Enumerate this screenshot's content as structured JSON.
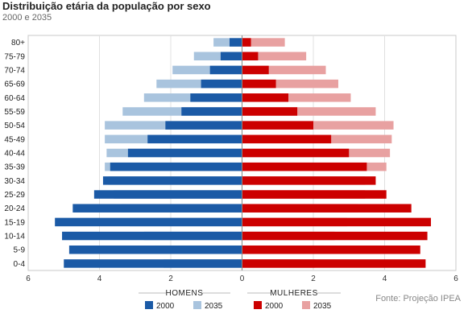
{
  "chart_data": {
    "type": "bar",
    "orientation": "horizontal-pyramid",
    "title": "Distribuição etária da população por sexo",
    "subtitle": "2000 e 2035",
    "categories": [
      "80+",
      "75-79",
      "70-74",
      "65-69",
      "60-64",
      "55-59",
      "50-54",
      "45-49",
      "40-44",
      "35-39",
      "30-34",
      "25-29",
      "20-24",
      "15-19",
      "10-14",
      "5-9",
      "0-4"
    ],
    "xlim": [
      -6,
      6
    ],
    "xticks": [
      -6,
      -4,
      -2,
      0,
      2,
      4,
      6
    ],
    "xtick_labels": [
      "6",
      "4",
      "2",
      "0",
      "2",
      "4",
      "6"
    ],
    "groups": [
      {
        "label": "HOMENS",
        "side": "left"
      },
      {
        "label": "MULHERES",
        "side": "right"
      }
    ],
    "series": [
      {
        "group": "HOMENS",
        "name": "2035",
        "color": "#a9c4de",
        "layer": "back",
        "values": [
          0.8,
          1.35,
          1.95,
          2.4,
          2.75,
          3.35,
          3.85,
          3.85,
          3.8,
          3.85,
          3.75,
          3.6,
          3.4,
          3.15,
          2.75,
          2.45,
          2.2
        ]
      },
      {
        "group": "HOMENS",
        "name": "2000",
        "color": "#1b5aa6",
        "layer": "front",
        "values": [
          0.35,
          0.6,
          0.9,
          1.15,
          1.45,
          1.7,
          2.15,
          2.65,
          3.2,
          3.7,
          3.9,
          4.15,
          4.75,
          5.25,
          5.05,
          4.85,
          5.0
        ]
      },
      {
        "group": "MULHERES",
        "name": "2035",
        "color": "#e8a1a1",
        "layer": "back",
        "values": [
          1.2,
          1.8,
          2.35,
          2.7,
          3.05,
          3.75,
          4.25,
          4.2,
          4.15,
          4.05,
          3.45,
          3.45,
          3.25,
          2.95,
          2.6,
          2.3,
          2.05
        ]
      },
      {
        "group": "MULHERES",
        "name": "2000",
        "color": "#cc0000",
        "layer": "front",
        "values": [
          0.25,
          0.45,
          0.75,
          0.95,
          1.3,
          1.55,
          2.0,
          2.5,
          3.0,
          3.5,
          3.75,
          4.05,
          4.75,
          5.3,
          5.2,
          5.0,
          5.15
        ]
      }
    ],
    "grid": true,
    "legend": "bottom",
    "source": "Fonte: Projeção IPEA"
  }
}
